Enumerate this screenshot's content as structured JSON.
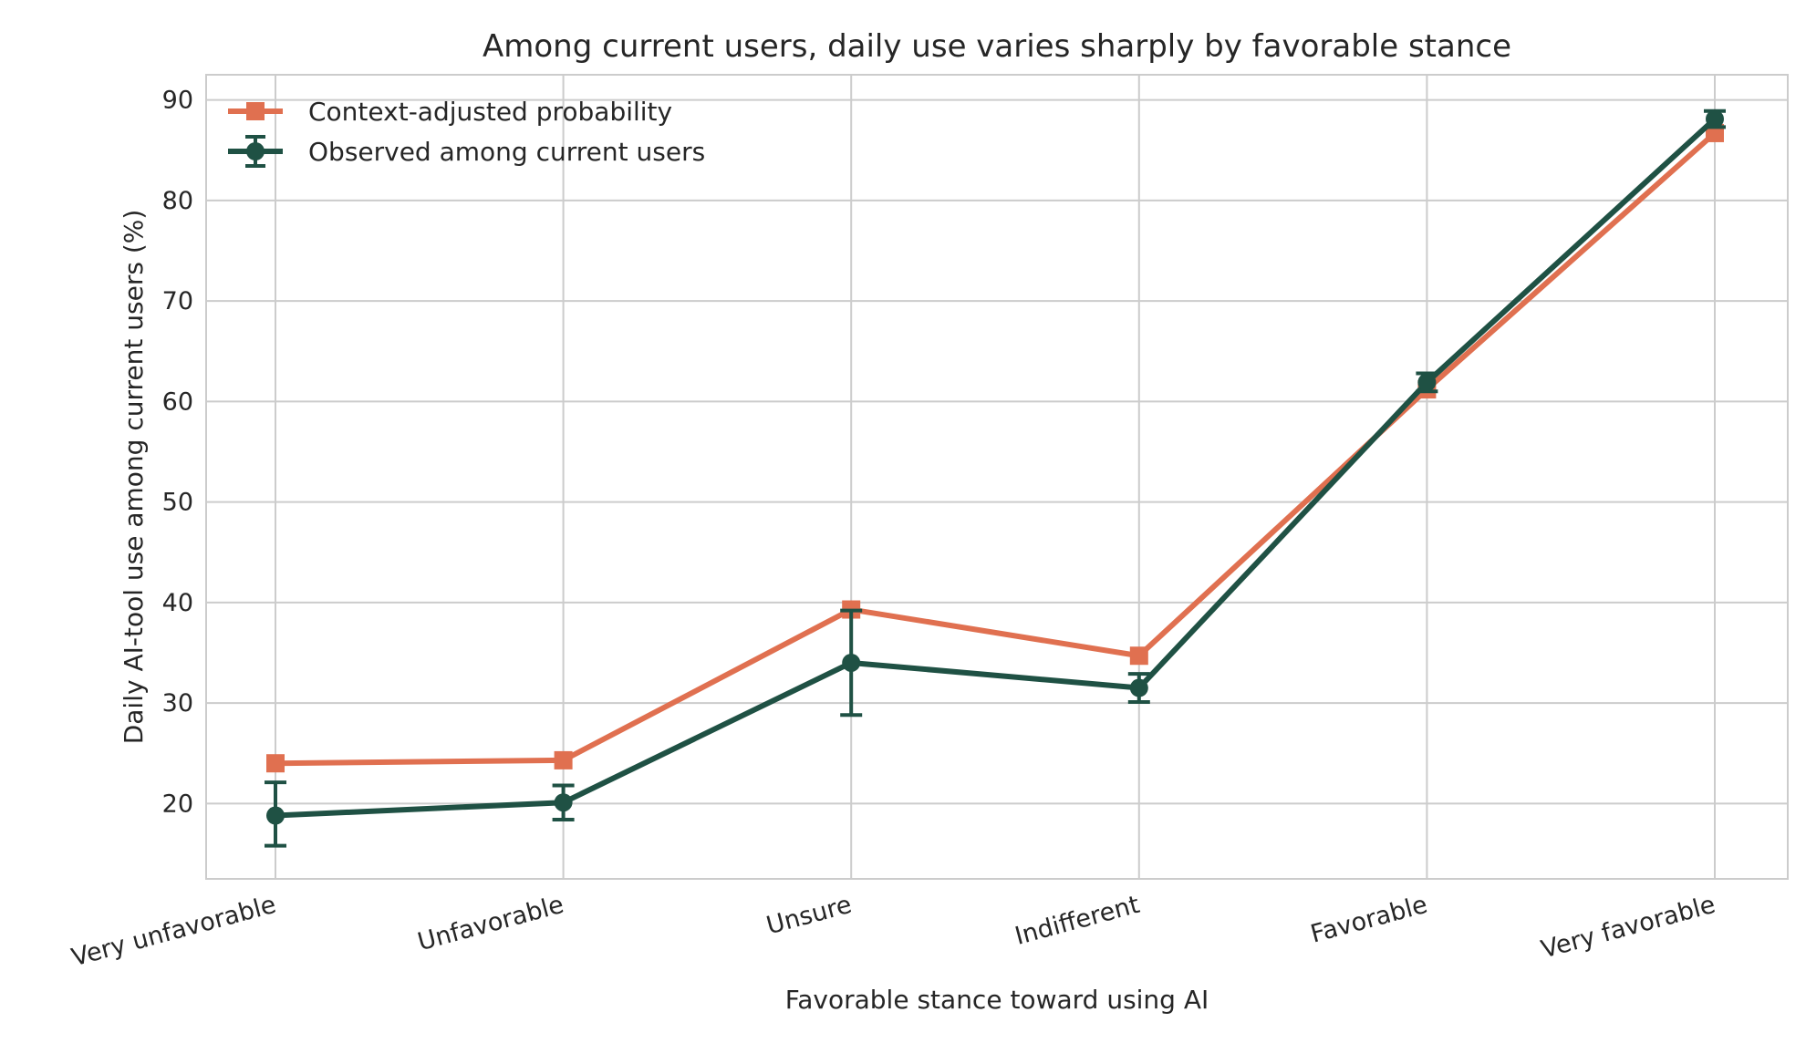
{
  "chart_data": {
    "type": "line",
    "title": "Among current users, daily use varies sharply by favorable stance",
    "xlabel": "Favorable stance toward using AI",
    "ylabel": "Daily AI-tool use among current users (%)",
    "categories": [
      "Very unfavorable",
      "Unfavorable",
      "Unsure",
      "Indifferent",
      "Favorable",
      "Very favorable"
    ],
    "ylim": [
      12.5,
      92.5
    ],
    "yticks": [
      20,
      30,
      40,
      50,
      60,
      70,
      80,
      90
    ],
    "grid": true,
    "legend_position": "top-left",
    "series": [
      {
        "name": "Context-adjusted probability",
        "marker": "square",
        "color": "#E07050",
        "values": [
          24.0,
          24.3,
          39.3,
          34.7,
          61.2,
          86.7
        ]
      },
      {
        "name": "Observed among current users",
        "marker": "circle",
        "color": "#1F5144",
        "values": [
          18.8,
          20.1,
          34.0,
          31.5,
          61.9,
          88.1
        ],
        "error_low": [
          15.8,
          18.4,
          28.8,
          30.1,
          61.0,
          87.3
        ],
        "error_high": [
          22.1,
          21.8,
          39.2,
          32.9,
          62.8,
          88.9
        ]
      }
    ]
  }
}
